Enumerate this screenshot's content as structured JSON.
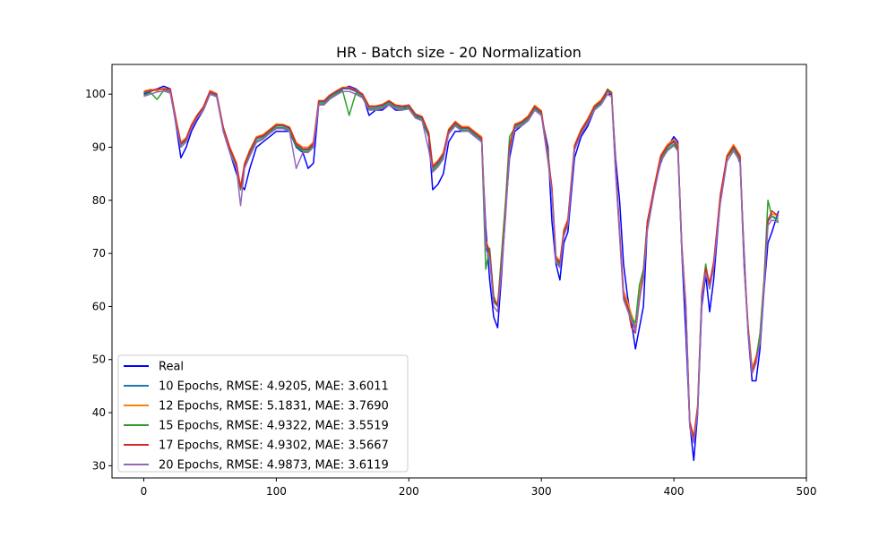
{
  "chart_data": {
    "type": "line",
    "title": "HR - Batch size - 20 Normalization",
    "xlabel": "",
    "ylabel": "",
    "xlim": [
      -24,
      500
    ],
    "ylim": [
      27.7,
      105.6
    ],
    "x_ticks": [
      0,
      100,
      200,
      300,
      400,
      500
    ],
    "y_ticks": [
      30,
      40,
      50,
      60,
      70,
      80,
      90,
      100
    ],
    "grid": false,
    "legend_position": "lower-left",
    "x": [
      0,
      5,
      10,
      15,
      20,
      25,
      28,
      32,
      36,
      40,
      45,
      50,
      55,
      60,
      65,
      70,
      73,
      76,
      80,
      85,
      90,
      95,
      100,
      105,
      110,
      115,
      120,
      124,
      128,
      132,
      136,
      140,
      145,
      150,
      155,
      160,
      165,
      170,
      175,
      180,
      185,
      190,
      195,
      200,
      205,
      210,
      215,
      218,
      222,
      226,
      230,
      235,
      240,
      245,
      250,
      255,
      258,
      261,
      264,
      267,
      270,
      273,
      276,
      280,
      285,
      290,
      295,
      300,
      305,
      308,
      311,
      314,
      317,
      320,
      325,
      330,
      335,
      340,
      345,
      350,
      353,
      356,
      359,
      362,
      365,
      368,
      371,
      374,
      377,
      380,
      385,
      390,
      395,
      400,
      403,
      406,
      409,
      412,
      415,
      418,
      421,
      424,
      427,
      430,
      435,
      440,
      445,
      450,
      453,
      456,
      459,
      462,
      465,
      468,
      471,
      474,
      479
    ],
    "series": [
      {
        "name": "Real",
        "color": "#0000ff",
        "values": [
          100,
          100.5,
          101,
          101.5,
          101,
          93,
          88,
          90,
          93,
          95,
          97,
          100,
          100,
          93,
          89,
          85,
          83,
          82,
          86,
          90,
          91,
          92,
          93,
          93,
          93,
          90,
          89,
          86,
          87,
          98,
          98,
          99,
          100,
          101,
          101.5,
          101,
          100,
          96,
          97,
          97,
          98,
          97,
          97,
          98,
          96,
          95,
          92,
          82,
          83,
          85,
          91,
          93,
          93,
          93,
          92,
          91,
          75,
          65,
          58,
          56,
          66,
          78,
          88,
          93,
          94,
          95,
          97,
          96,
          90,
          76,
          68,
          65,
          72,
          74,
          88,
          92,
          94,
          97,
          98.5,
          100,
          100,
          88,
          80,
          68,
          62,
          57,
          52,
          56,
          60,
          75,
          82,
          87,
          90,
          92,
          91,
          70,
          55,
          38,
          31,
          40,
          60,
          66,
          59,
          65,
          80,
          88,
          90,
          87,
          70,
          55,
          46,
          46,
          52,
          63,
          72,
          74,
          78
        ]
      },
      {
        "name": "10 Epochs, RMSE: 4.9205, MAE: 3.6011",
        "color": "#1f77b4",
        "values": [
          100.2,
          100.6,
          100.8,
          101,
          100.5,
          94,
          90.5,
          91.5,
          94,
          95.8,
          97.4,
          100.2,
          99.8,
          93.5,
          89.5,
          86.5,
          82,
          86.5,
          89,
          91.5,
          92,
          93,
          94,
          94,
          93.5,
          90.5,
          89.5,
          89.5,
          90.5,
          98.5,
          98.5,
          99.5,
          100.3,
          101,
          101,
          100.5,
          99.8,
          97.5,
          97.5,
          97.8,
          98.5,
          97.7,
          97.5,
          97.7,
          96,
          95.5,
          92.5,
          86,
          87,
          88.5,
          93,
          94.5,
          93.5,
          93.5,
          92.5,
          91.5,
          72,
          70,
          61,
          60,
          68,
          78,
          90,
          94,
          94.5,
          95.5,
          97.5,
          96.5,
          88,
          82,
          69,
          68,
          74,
          76,
          90,
          93,
          95,
          97.5,
          98.5,
          100.5,
          100,
          86,
          74,
          62,
          60,
          58,
          56,
          62,
          66,
          75,
          82,
          88,
          90,
          91,
          90,
          71,
          60,
          38,
          35,
          41,
          62,
          67,
          64,
          68,
          80,
          88,
          90,
          88,
          68,
          56,
          48,
          50,
          54,
          64,
          76,
          77,
          76.5
        ]
      },
      {
        "name": "12 Epochs, RMSE: 5.1831, MAE: 3.7690",
        "color": "#ff7f0e",
        "values": [
          100.6,
          100.9,
          100.6,
          101.2,
          100.8,
          94.5,
          91,
          91.8,
          94.3,
          96,
          97.7,
          100.7,
          100.1,
          93.8,
          90,
          87,
          82.5,
          87,
          89.5,
          92,
          92.4,
          93.4,
          94.4,
          94.3,
          93.8,
          90.9,
          90,
          90,
          91,
          98.8,
          98.8,
          99.8,
          100.6,
          101.3,
          101.3,
          100.8,
          100.1,
          97.8,
          97.8,
          98.1,
          98.8,
          98,
          97.8,
          98,
          96.3,
          95.8,
          92.8,
          86.6,
          87.5,
          89,
          93.4,
          94.9,
          93.9,
          93.9,
          92.9,
          92,
          72.5,
          70.5,
          61.5,
          60.5,
          68.5,
          78.5,
          90.5,
          94.4,
          94.9,
          95.9,
          97.9,
          96.9,
          88.5,
          82.5,
          69.5,
          68.5,
          74.5,
          76.5,
          90.4,
          93.4,
          95.4,
          97.9,
          98.9,
          100.9,
          100.4,
          86.5,
          74.5,
          63,
          61,
          58.5,
          56.5,
          62.5,
          66.5,
          75.5,
          82.5,
          88.5,
          90.5,
          91.5,
          90.5,
          71.5,
          60.5,
          38.5,
          35.5,
          41.5,
          62.5,
          67.5,
          64.5,
          68.5,
          80.5,
          88.5,
          90.5,
          88.5,
          68.5,
          56.5,
          48.5,
          50.5,
          54.5,
          64.5,
          76.5,
          77.5,
          77
        ]
      },
      {
        "name": "15 Epochs, RMSE: 4.9322, MAE: 3.5519",
        "color": "#2ca02c",
        "values": [
          99.8,
          100.3,
          99,
          100.7,
          100.2,
          93.6,
          90,
          91.2,
          93.7,
          95.5,
          97.1,
          100,
          99.5,
          93.2,
          89.2,
          86.1,
          82,
          86.2,
          88.6,
          91.1,
          91.7,
          92.8,
          93.7,
          93.7,
          93.2,
          90.2,
          89.2,
          89.2,
          90.2,
          98.2,
          98.2,
          99.2,
          100,
          100.7,
          96,
          100.2,
          99.5,
          97.2,
          97.2,
          97.5,
          98.2,
          97.4,
          97.2,
          97.4,
          95.7,
          95.2,
          92.2,
          85.6,
          86.6,
          88.1,
          92.7,
          94.2,
          93.2,
          93.2,
          92.2,
          91.2,
          67,
          71,
          62,
          60,
          70,
          80,
          92,
          93.7,
          94.2,
          95.2,
          97.2,
          96.2,
          89,
          81.6,
          68.6,
          67.6,
          73.6,
          75.6,
          89.7,
          92.7,
          94.7,
          97.2,
          98.2,
          101,
          100.2,
          85.6,
          73.6,
          61.8,
          59.6,
          57.6,
          57,
          64,
          67,
          76,
          82,
          87.6,
          89.6,
          90.6,
          89.6,
          70.6,
          59.6,
          37.6,
          34.6,
          40.6,
          61.6,
          68,
          63.6,
          68,
          80,
          88,
          89.6,
          87.6,
          67.6,
          55.6,
          47.6,
          50,
          55,
          65,
          80,
          77,
          76
        ]
      },
      {
        "name": "17 Epochs, RMSE: 4.9302, MAE: 3.5667",
        "color": "#d62728",
        "values": [
          100.4,
          100.7,
          101,
          100.9,
          101,
          94.2,
          90.7,
          91.6,
          94.1,
          95.9,
          97.6,
          100.5,
          100,
          93.7,
          89.8,
          86.8,
          82.3,
          86.8,
          89.3,
          91.8,
          92.2,
          93.2,
          94.2,
          94.2,
          93.7,
          90.7,
          89.7,
          89.7,
          90.7,
          98.7,
          98.7,
          99.7,
          100.5,
          101.2,
          101.2,
          100.7,
          100,
          97.7,
          97.7,
          98,
          98.7,
          97.9,
          97.7,
          97.9,
          96.2,
          95.7,
          92.7,
          86.3,
          87.3,
          88.8,
          93.2,
          94.7,
          93.7,
          93.7,
          92.7,
          91.7,
          72.2,
          70.2,
          61.2,
          60.2,
          68.2,
          78.2,
          90.2,
          94.2,
          94.7,
          95.7,
          97.7,
          96.7,
          88.2,
          82.2,
          69.2,
          68.2,
          74.2,
          76.2,
          90.2,
          93.2,
          95.2,
          97.7,
          98.7,
          100.7,
          100.2,
          86.2,
          74.2,
          62.2,
          60.2,
          56,
          55,
          61,
          66.2,
          76,
          82.2,
          88.2,
          90.2,
          91.2,
          90.2,
          71.2,
          60.2,
          38.2,
          35.2,
          41.2,
          62.2,
          67.2,
          64.2,
          68.2,
          81,
          88.2,
          90.2,
          88.2,
          68.2,
          56.2,
          47.5,
          50.2,
          53,
          64.2,
          76.2,
          78,
          77
        ]
      },
      {
        "name": "20 Epochs, RMSE: 4.9873, MAE: 3.6119",
        "color": "#9467bd",
        "values": [
          99.6,
          100,
          100.4,
          100.6,
          100.2,
          93.4,
          90,
          91,
          93.6,
          95.4,
          97,
          100,
          99.6,
          93,
          88.9,
          85.9,
          79,
          86,
          88.3,
          90.9,
          91.5,
          92.6,
          93.5,
          93.5,
          93,
          86,
          89,
          89,
          90,
          98,
          98,
          99,
          99.8,
          100.5,
          100.5,
          100,
          99.3,
          97,
          97,
          97.3,
          98,
          97.2,
          97,
          97.2,
          95.5,
          95,
          89.5,
          85.3,
          86.3,
          87.8,
          92.5,
          94,
          93,
          93,
          92,
          91,
          71,
          69,
          60,
          59,
          67,
          77,
          89,
          93.5,
          94,
          95,
          97,
          96,
          87.3,
          81.3,
          68.3,
          67.3,
          73.3,
          75.3,
          89.5,
          92.5,
          94.5,
          97,
          98,
          100,
          99.5,
          85.3,
          73.3,
          61.3,
          59.3,
          57.3,
          55.3,
          61.3,
          65.3,
          74.3,
          81.3,
          87.3,
          89.3,
          90.3,
          89.3,
          70.3,
          59.3,
          37.3,
          34.3,
          40.3,
          61.3,
          66.3,
          63.3,
          67.3,
          79.3,
          87.3,
          89.3,
          87.3,
          67.3,
          55.3,
          47.3,
          49.3,
          53.3,
          63.3,
          75.3,
          76.3,
          75.8
        ]
      }
    ]
  }
}
